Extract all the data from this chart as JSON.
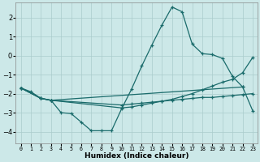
{
  "xlabel": "Humidex (Indice chaleur)",
  "bg_color": "#cce8e8",
  "grid_color": "#aacccc",
  "line_color": "#1a6b6b",
  "xlim": [
    -0.5,
    23.5
  ],
  "ylim": [
    -4.6,
    2.8
  ],
  "yticks": [
    -4,
    -3,
    -2,
    -1,
    0,
    1,
    2
  ],
  "xticks": [
    0,
    1,
    2,
    3,
    4,
    5,
    6,
    7,
    8,
    9,
    10,
    11,
    12,
    13,
    14,
    15,
    16,
    17,
    18,
    19,
    20,
    21,
    22,
    23
  ],
  "s1_x": [
    0,
    1,
    2,
    3,
    4,
    5,
    6,
    7,
    8,
    9,
    10,
    11,
    12,
    13,
    14,
    15,
    16,
    17,
    18,
    19,
    20,
    21,
    22
  ],
  "s1_y": [
    -1.7,
    -1.9,
    -2.25,
    -2.35,
    -3.0,
    -3.05,
    -3.5,
    -3.95,
    -3.95,
    -3.95,
    -2.8,
    -1.75,
    -0.55,
    0.55,
    1.6,
    2.55,
    2.3,
    0.6,
    0.1,
    0.05,
    -0.15,
    -1.1,
    -1.65
  ],
  "s2_x": [
    0,
    2,
    3,
    22,
    23
  ],
  "s2_y": [
    -1.7,
    -2.25,
    -2.35,
    -1.65,
    -2.9
  ],
  "s3_x": [
    0,
    2,
    3,
    10,
    11,
    12,
    13,
    14,
    15,
    16,
    17,
    18,
    19,
    20,
    21,
    22,
    23
  ],
  "s3_y": [
    -1.7,
    -2.25,
    -2.35,
    -2.6,
    -2.55,
    -2.5,
    -2.45,
    -2.4,
    -2.35,
    -2.3,
    -2.25,
    -2.2,
    -2.2,
    -2.15,
    -2.1,
    -2.05,
    -2.0
  ],
  "s4_x": [
    0,
    2,
    3,
    10,
    11,
    12,
    13,
    14,
    15,
    16,
    17,
    18,
    19,
    20,
    21,
    22,
    23
  ],
  "s4_y": [
    -1.7,
    -2.25,
    -2.35,
    -2.75,
    -2.7,
    -2.6,
    -2.5,
    -2.4,
    -2.3,
    -2.15,
    -2.0,
    -1.8,
    -1.6,
    -1.4,
    -1.25,
    -0.9,
    -0.1
  ]
}
